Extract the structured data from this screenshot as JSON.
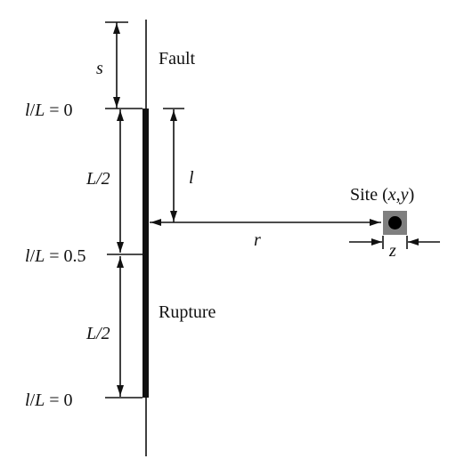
{
  "labels": {
    "s": "s",
    "fault": "Fault",
    "ll_top": "l/L = 0",
    "ll_mid": "l/L = 0.5",
    "ll_bottom": "l/L = 0",
    "half_upper": "L/2",
    "half_lower": "L/2",
    "l": "l",
    "site_prefix": "Site (",
    "site_x": "x",
    "site_comma": ",",
    "site_y": "y",
    "site_suffix": ")",
    "r": "r",
    "z": "z",
    "rupture": "Rupture"
  },
  "colors": {
    "ink": "#111111",
    "site_box": "#7f7f7f",
    "site_dot": "#000000"
  }
}
